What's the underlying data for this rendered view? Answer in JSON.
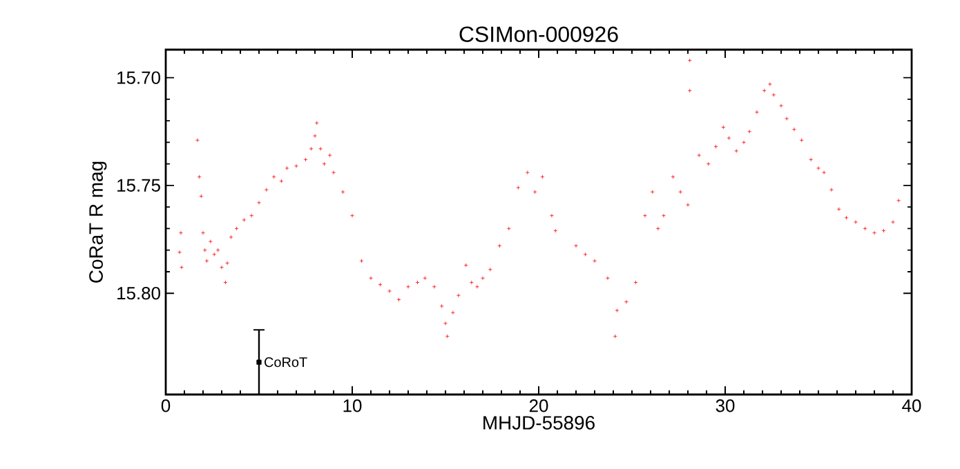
{
  "chart_data": {
    "type": "scatter",
    "title": "CSIMon-000926",
    "xlabel": "MHJD-55896",
    "ylabel": "CoRaT R mag",
    "xlim": [
      0,
      40
    ],
    "ylim": [
      15.847,
      15.687
    ],
    "xticks": [
      0,
      10,
      20,
      30,
      40
    ],
    "yticks": [
      {
        "value": 15.7,
        "label": "15.70"
      },
      {
        "value": 15.75,
        "label": "15.75"
      },
      {
        "value": 15.8,
        "label": "15.80"
      }
    ],
    "grid": false,
    "legend": false,
    "marker": "cross",
    "series": [
      {
        "color": "#ff0000",
        "x": [
          0.74,
          0.81,
          0.85,
          1.7,
          1.8,
          1.9,
          2.0,
          2.1,
          2.2,
          2.4,
          2.6,
          2.8,
          3.0,
          3.2,
          3.3,
          3.5,
          3.8,
          4.2,
          4.6,
          5.0,
          5.4,
          5.8,
          6.2,
          6.5,
          7.0,
          7.5,
          7.8,
          8.0,
          8.1,
          8.3,
          8.5,
          8.8,
          9.0,
          9.5,
          10.0,
          10.5,
          11.0,
          11.5,
          12.0,
          12.5,
          13.0,
          13.5,
          13.9,
          14.4,
          14.8,
          15.0,
          15.1,
          15.4,
          15.7,
          16.1,
          16.4,
          16.7,
          17.0,
          17.4,
          17.9,
          18.4,
          18.9,
          19.4,
          19.8,
          20.2,
          20.7,
          20.9,
          22.0,
          22.5,
          23.0,
          23.7,
          24.1,
          24.2,
          24.7,
          25.2,
          25.7,
          26.1,
          26.4,
          26.7,
          27.2,
          27.6,
          28.0,
          28.1,
          28.1,
          28.6,
          29.1,
          29.5,
          29.9,
          30.2,
          30.6,
          31.0,
          31.3,
          31.7,
          32.1,
          32.4,
          32.6,
          33.0,
          33.3,
          33.7,
          34.1,
          34.6,
          35.0,
          35.3,
          35.7,
          36.1,
          36.5,
          37.0,
          37.5,
          38.0,
          38.5,
          39.0,
          39.3
        ],
        "values": [
          15.781,
          15.772,
          15.788,
          15.729,
          15.746,
          15.755,
          15.772,
          15.78,
          15.785,
          15.776,
          15.782,
          15.78,
          15.788,
          15.795,
          15.786,
          15.774,
          15.77,
          15.766,
          15.764,
          15.758,
          15.752,
          15.746,
          15.748,
          15.742,
          15.741,
          15.738,
          15.733,
          15.727,
          15.721,
          15.733,
          15.74,
          15.736,
          15.744,
          15.753,
          15.764,
          15.785,
          15.793,
          15.796,
          15.799,
          15.803,
          15.797,
          15.795,
          15.793,
          15.797,
          15.806,
          15.814,
          15.82,
          15.809,
          15.801,
          15.787,
          15.795,
          15.797,
          15.793,
          15.789,
          15.778,
          15.77,
          15.751,
          15.744,
          15.753,
          15.746,
          15.764,
          15.771,
          15.778,
          15.782,
          15.785,
          15.793,
          15.82,
          15.808,
          15.804,
          15.795,
          15.764,
          15.753,
          15.77,
          15.764,
          15.746,
          15.753,
          15.759,
          15.706,
          15.692,
          15.736,
          15.74,
          15.732,
          15.723,
          15.728,
          15.734,
          15.73,
          15.725,
          15.716,
          15.706,
          15.703,
          15.708,
          15.713,
          15.719,
          15.724,
          15.729,
          15.738,
          15.742,
          15.744,
          15.752,
          15.761,
          15.765,
          15.767,
          15.77,
          15.772,
          15.771,
          15.767,
          15.757
        ]
      },
      {
        "name": "CoRoT",
        "color": "#000000",
        "marker": "square",
        "x": [
          5
        ],
        "values": [
          15.832
        ],
        "errors": [
          0.015
        ]
      }
    ]
  }
}
